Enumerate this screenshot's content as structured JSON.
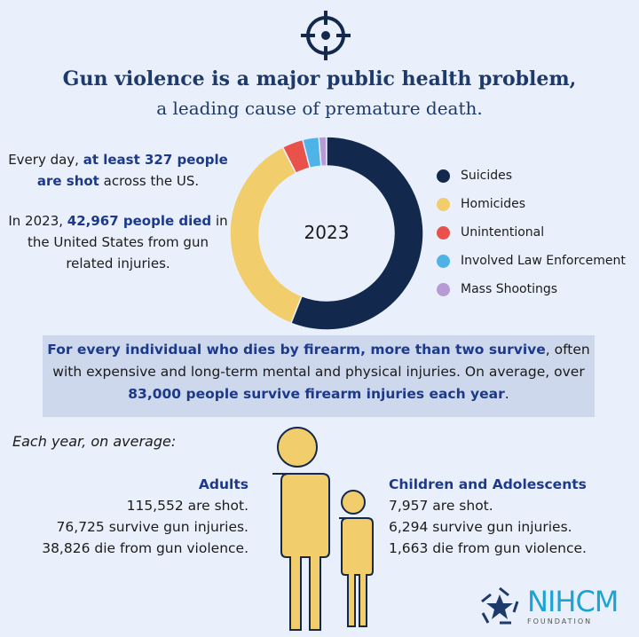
{
  "header": {
    "icon": "crosshair-icon",
    "title_line1": "Gun violence is a major public health problem,",
    "title_line2": "a leading cause of premature death."
  },
  "left_text": {
    "p1_a": "Every day, ",
    "p1_b": "at least 327 people are shot",
    "p1_c": " across the US.",
    "p2_a": "In 2023, ",
    "p2_b": "42,967 people died",
    "p2_c": " in the United States from gun related injuries."
  },
  "chart_data": {
    "type": "pie",
    "donut": true,
    "center_label": "2023",
    "legend_position": "right",
    "categories": [
      "Suicides",
      "Homicides",
      "Unintentional",
      "Involved Law Enforcement",
      "Mass Shootings"
    ],
    "values": [
      56,
      36.5,
      3.5,
      2.7,
      1.3
    ],
    "colors": [
      "#13284d",
      "#f2cd6b",
      "#e8524a",
      "#4fb3e8",
      "#b79ad6"
    ]
  },
  "band": {
    "a": "For every individual who dies by firearm, more than two survive",
    "b": ", often with expensive and long-term mental and physical injuries. On average, over ",
    "c": "83,000 people survive firearm injuries each year",
    "d": "."
  },
  "stats": {
    "heading": "Each year, on average:",
    "adults": {
      "title": "Adults",
      "lines": [
        "115,552 are shot.",
        "76,725 survive gun injuries.",
        "38,826 die from gun violence."
      ]
    },
    "children": {
      "title": "Children and Adolescents",
      "lines": [
        "7,957 are shot.",
        "6,294 survive gun injuries.",
        "1,663 die from gun violence."
      ]
    }
  },
  "logo": {
    "name": "NIHCM",
    "sub": "FOUNDATION",
    "color": "#1aa3d6"
  }
}
